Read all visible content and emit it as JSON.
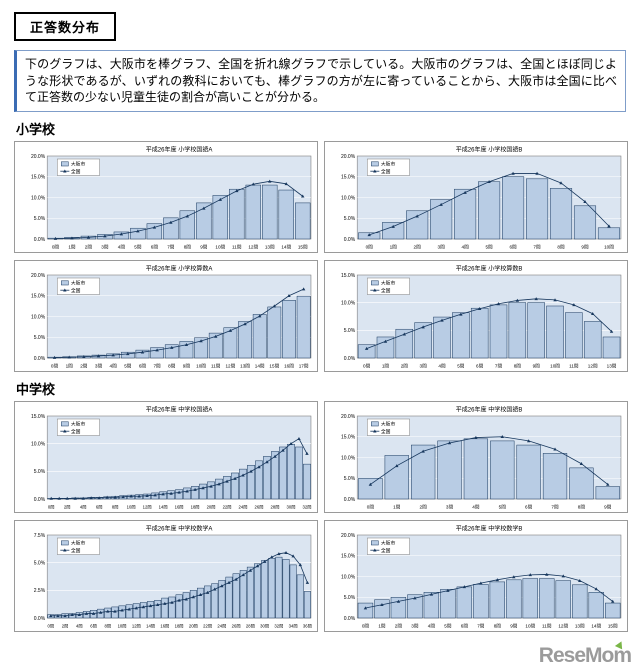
{
  "page": {
    "title_box": "正答数分布",
    "description": "下のグラフは、大阪市を棒グラフ、全国を折れ線グラフで示している。大阪市のグラフは、全国とほぼ同じような形状であるが、いずれの教科においても、棒グラフの方が左に寄っていることから、大阪市は全国に比べて正答数の少ない児童生徒の割合が高いことが分かる。",
    "sections": [
      {
        "label": "小学校"
      },
      {
        "label": "中学校"
      }
    ],
    "footer_logo": "ReseMom"
  },
  "colors": {
    "bar_fill": "#b8cce4",
    "bar_stroke": "#17375d",
    "line": "#17375d",
    "plot_bg": "#dbe5f1",
    "plot_border": "#7f7f7f",
    "grid": "#ffffff"
  },
  "chart_data": [
    {
      "type": "bar",
      "title": "平成26年度 小学校国語A",
      "legend_position": "top-left",
      "grid": true,
      "label_every": 1,
      "ylim": [
        0,
        20
      ],
      "ytick": 5,
      "categories": [
        "0問",
        "1問",
        "2問",
        "3問",
        "4問",
        "5問",
        "6問",
        "7問",
        "8問",
        "9問",
        "10問",
        "11問",
        "12問",
        "13問",
        "14問",
        "15問"
      ],
      "series": [
        {
          "name": "大阪市",
          "type": "bar",
          "values": [
            0.2,
            0.4,
            0.7,
            1.1,
            1.7,
            2.6,
            3.7,
            5.1,
            6.8,
            8.7,
            10.5,
            12.0,
            13.0,
            13.0,
            11.8,
            8.7
          ]
        },
        {
          "name": "全国",
          "type": "line",
          "values": [
            0.1,
            0.2,
            0.4,
            0.7,
            1.2,
            1.9,
            2.8,
            4.0,
            5.5,
            7.4,
            9.5,
            11.6,
            13.2,
            13.9,
            13.3,
            10.3
          ]
        }
      ]
    },
    {
      "type": "bar",
      "title": "平成26年度 小学校国語B",
      "legend_position": "top-left",
      "grid": true,
      "label_every": 1,
      "ylim": [
        0,
        20
      ],
      "ytick": 5,
      "categories": [
        "0問",
        "1問",
        "2問",
        "3問",
        "4問",
        "5問",
        "6問",
        "7問",
        "8問",
        "9問",
        "10問"
      ],
      "series": [
        {
          "name": "大阪市",
          "type": "bar",
          "values": [
            1.5,
            4.0,
            6.8,
            9.5,
            12.0,
            13.8,
            15.0,
            14.5,
            12.2,
            8.0,
            2.7
          ]
        },
        {
          "name": "全国",
          "type": "line",
          "values": [
            1.0,
            3.0,
            5.5,
            8.3,
            11.2,
            13.8,
            15.8,
            15.8,
            13.5,
            9.0,
            3.1
          ]
        }
      ]
    },
    {
      "type": "bar",
      "title": "平成26年度 小学校算数A",
      "legend_position": "top-left",
      "grid": true,
      "label_every": 1,
      "ylim": [
        0,
        20
      ],
      "ytick": 5,
      "categories": [
        "0問",
        "1問",
        "2問",
        "3問",
        "4問",
        "5問",
        "6問",
        "7問",
        "8問",
        "9問",
        "10問",
        "11問",
        "12問",
        "13問",
        "14問",
        "15問",
        "16問",
        "17問"
      ],
      "series": [
        {
          "name": "大阪市",
          "type": "bar",
          "values": [
            0.2,
            0.3,
            0.5,
            0.7,
            1.0,
            1.4,
            1.9,
            2.5,
            3.2,
            4.0,
            4.9,
            6.0,
            7.3,
            8.8,
            10.5,
            12.3,
            13.9,
            14.9
          ]
        },
        {
          "name": "全国",
          "type": "line",
          "values": [
            0.1,
            0.2,
            0.3,
            0.5,
            0.7,
            1.0,
            1.4,
            1.9,
            2.5,
            3.2,
            4.1,
            5.2,
            6.6,
            8.2,
            10.1,
            12.5,
            15.0,
            16.6
          ]
        }
      ]
    },
    {
      "type": "bar",
      "title": "平成26年度 小学校算数B",
      "legend_position": "top-left",
      "grid": true,
      "label_every": 1,
      "ylim": [
        0,
        15
      ],
      "ytick": 5,
      "categories": [
        "0問",
        "1問",
        "2問",
        "3問",
        "4問",
        "5問",
        "6問",
        "7問",
        "8問",
        "9問",
        "10問",
        "11問",
        "12問",
        "13問"
      ],
      "series": [
        {
          "name": "大阪市",
          "type": "bar",
          "values": [
            2.4,
            3.8,
            5.2,
            6.4,
            7.4,
            8.2,
            9.0,
            9.6,
            10.0,
            10.0,
            9.4,
            8.2,
            6.6,
            3.8
          ]
        },
        {
          "name": "全国",
          "type": "line",
          "values": [
            1.7,
            3.0,
            4.3,
            5.6,
            6.8,
            7.9,
            8.9,
            9.8,
            10.4,
            10.7,
            10.5,
            9.6,
            8.0,
            4.8
          ]
        }
      ]
    },
    {
      "type": "bar",
      "title": "平成26年度 中学校国語A",
      "legend_position": "top-left",
      "grid": true,
      "label_every": 2,
      "ylim": [
        0,
        15
      ],
      "ytick": 5,
      "categories": [
        "0問",
        "1問",
        "2問",
        "3問",
        "4問",
        "5問",
        "6問",
        "7問",
        "8問",
        "9問",
        "10問",
        "11問",
        "12問",
        "13問",
        "14問",
        "15問",
        "16問",
        "17問",
        "18問",
        "19問",
        "20問",
        "21問",
        "22問",
        "23問",
        "24問",
        "25問",
        "26問",
        "27問",
        "28問",
        "29問",
        "30問",
        "31問",
        "32問"
      ],
      "series": [
        {
          "name": "大阪市",
          "type": "bar",
          "values": [
            0.1,
            0.1,
            0.1,
            0.2,
            0.2,
            0.3,
            0.3,
            0.4,
            0.5,
            0.6,
            0.7,
            0.8,
            0.9,
            1.1,
            1.3,
            1.5,
            1.7,
            2.0,
            2.3,
            2.7,
            3.1,
            3.6,
            4.1,
            4.7,
            5.4,
            6.1,
            6.9,
            7.7,
            8.6,
            9.4,
            9.9,
            9.4,
            6.3
          ]
        },
        {
          "name": "全国",
          "type": "line",
          "values": [
            0.1,
            0.1,
            0.1,
            0.1,
            0.1,
            0.2,
            0.2,
            0.3,
            0.3,
            0.4,
            0.5,
            0.5,
            0.6,
            0.7,
            0.9,
            1.0,
            1.2,
            1.4,
            1.7,
            2.0,
            2.3,
            2.7,
            3.2,
            3.7,
            4.3,
            5.0,
            5.8,
            6.7,
            7.7,
            8.8,
            10.0,
            10.9,
            8.2
          ]
        }
      ]
    },
    {
      "type": "bar",
      "title": "平成26年度 中学校国語B",
      "legend_position": "top-left",
      "grid": true,
      "label_every": 1,
      "ylim": [
        0,
        20
      ],
      "ytick": 5,
      "categories": [
        "0問",
        "1問",
        "2問",
        "3問",
        "4問",
        "5問",
        "6問",
        "7問",
        "8問",
        "9問"
      ],
      "series": [
        {
          "name": "大阪市",
          "type": "bar",
          "values": [
            5.0,
            10.5,
            13.0,
            14.0,
            14.5,
            14.0,
            13.0,
            11.0,
            7.5,
            3.0
          ]
        },
        {
          "name": "全国",
          "type": "line",
          "values": [
            3.5,
            8.0,
            11.5,
            13.5,
            14.8,
            15.0,
            14.0,
            12.0,
            8.5,
            3.5
          ]
        }
      ]
    },
    {
      "type": "bar",
      "title": "平成26年度 中学校数学A",
      "legend_position": "top-left",
      "grid": true,
      "label_every": 2,
      "ylim": [
        0,
        7.5
      ],
      "ytick": 2.5,
      "categories": [
        "0問",
        "1問",
        "2問",
        "3問",
        "4問",
        "5問",
        "6問",
        "7問",
        "8問",
        "9問",
        "10問",
        "11問",
        "12問",
        "13問",
        "14問",
        "15問",
        "16問",
        "17問",
        "18問",
        "19問",
        "20問",
        "21問",
        "22問",
        "23問",
        "24問",
        "25問",
        "26問",
        "27問",
        "28問",
        "29問",
        "30問",
        "31問",
        "32問",
        "33問",
        "34問",
        "35問",
        "36問"
      ],
      "series": [
        {
          "name": "大阪市",
          "type": "bar",
          "values": [
            0.3,
            0.3,
            0.4,
            0.4,
            0.5,
            0.6,
            0.7,
            0.8,
            0.9,
            1.0,
            1.1,
            1.2,
            1.3,
            1.4,
            1.5,
            1.6,
            1.8,
            1.9,
            2.1,
            2.3,
            2.5,
            2.7,
            2.9,
            3.1,
            3.4,
            3.7,
            4.0,
            4.3,
            4.6,
            4.9,
            5.2,
            5.4,
            5.5,
            5.3,
            4.8,
            3.9,
            2.4
          ]
        },
        {
          "name": "全国",
          "type": "line",
          "values": [
            0.2,
            0.2,
            0.2,
            0.3,
            0.3,
            0.4,
            0.4,
            0.5,
            0.6,
            0.6,
            0.7,
            0.8,
            0.9,
            1.0,
            1.1,
            1.2,
            1.3,
            1.4,
            1.6,
            1.7,
            1.9,
            2.1,
            2.3,
            2.6,
            2.9,
            3.2,
            3.5,
            3.9,
            4.3,
            4.7,
            5.1,
            5.5,
            5.8,
            5.9,
            5.6,
            4.8,
            3.2
          ]
        }
      ]
    },
    {
      "type": "bar",
      "title": "平成26年度 中学校数学B",
      "legend_position": "top-left",
      "grid": true,
      "label_every": 1,
      "ylim": [
        0,
        20
      ],
      "ytick": 5,
      "categories": [
        "0問",
        "1問",
        "2問",
        "3問",
        "4問",
        "5問",
        "6問",
        "7問",
        "8問",
        "9問",
        "10問",
        "11問",
        "12問",
        "13問",
        "14問",
        "15問"
      ],
      "series": [
        {
          "name": "大阪市",
          "type": "bar",
          "values": [
            3.6,
            4.4,
            5.0,
            5.6,
            6.2,
            6.9,
            7.5,
            8.1,
            8.7,
            9.2,
            9.5,
            9.5,
            9.0,
            8.0,
            6.2,
            3.6
          ]
        },
        {
          "name": "全国",
          "type": "line",
          "values": [
            2.4,
            3.2,
            4.0,
            4.8,
            5.7,
            6.6,
            7.5,
            8.4,
            9.2,
            9.9,
            10.4,
            10.5,
            10.1,
            9.0,
            7.0,
            4.0
          ]
        }
      ]
    }
  ]
}
